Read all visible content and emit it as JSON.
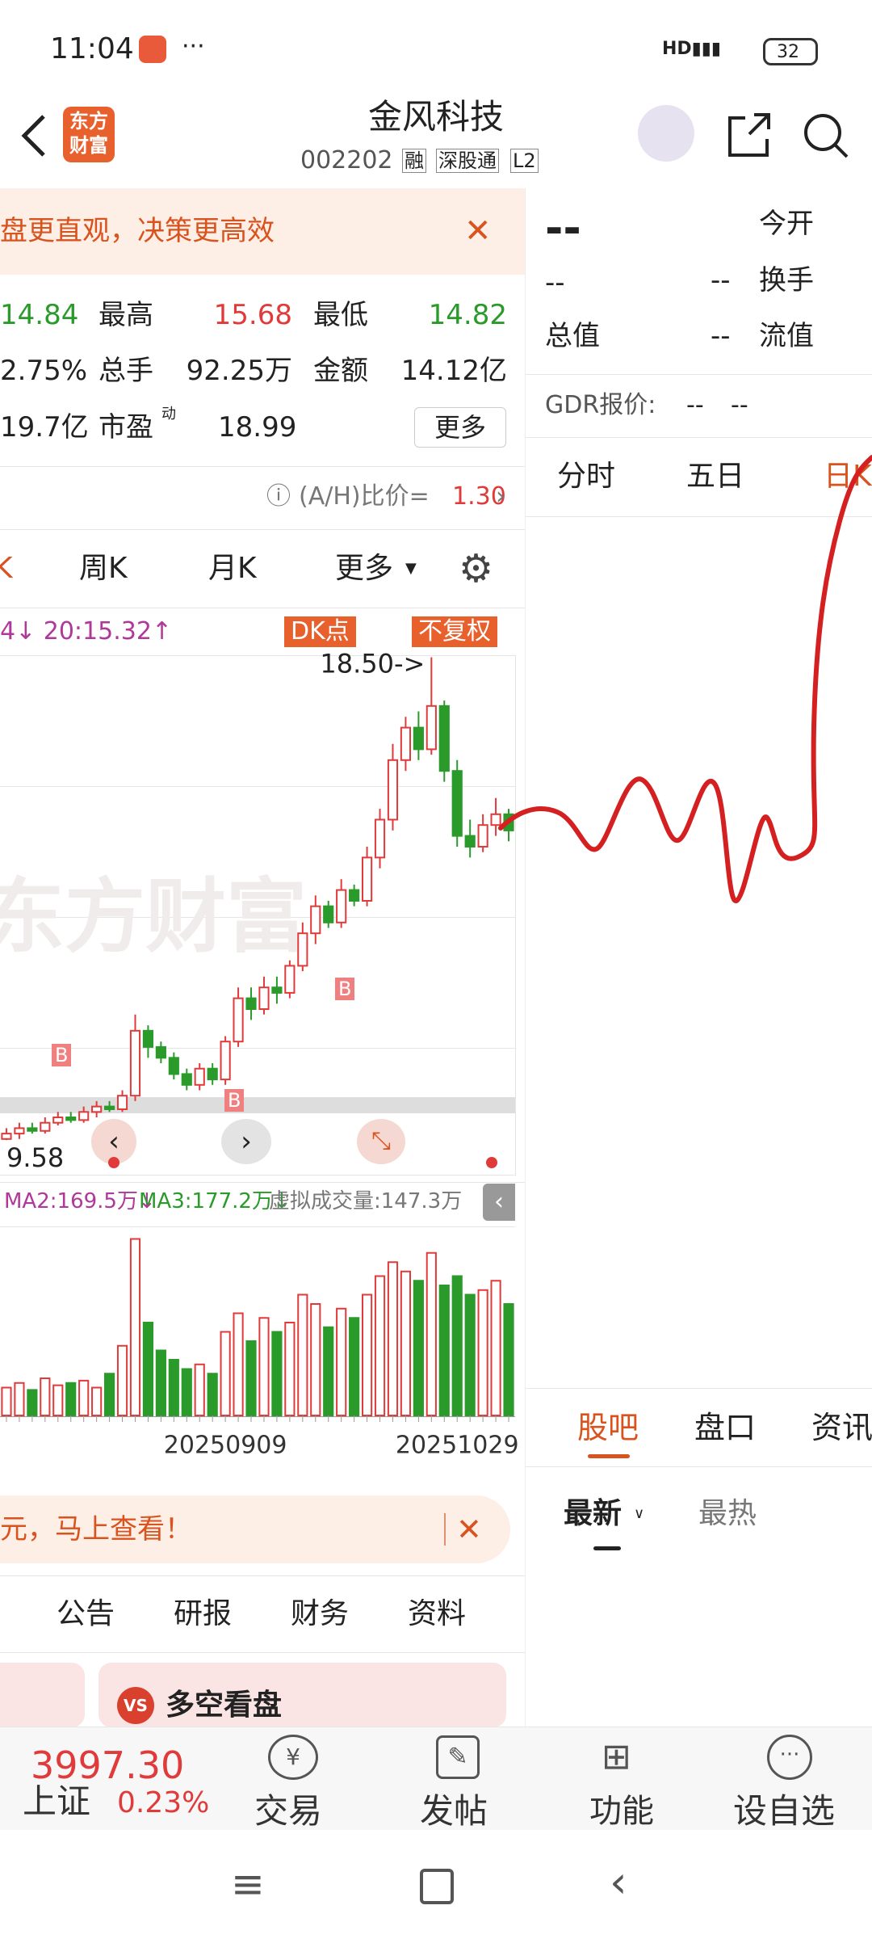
{
  "status_bar": {
    "time": "11:04",
    "battery": "32"
  },
  "header": {
    "logo": [
      "东方",
      "财富"
    ],
    "title": "金风科技",
    "code": "002202",
    "tags": [
      "融",
      "深股通",
      "L2"
    ]
  },
  "banner": {
    "text": "盘更直观，决策更高效"
  },
  "quote": {
    "rows": [
      [
        "14.84",
        "最高",
        "15.68",
        "最低",
        "14.82"
      ],
      [
        "2.75%",
        "总手",
        "92.25万",
        "金额",
        "14.12亿"
      ],
      [
        "19.7亿",
        "市盈",
        "动",
        "18.99"
      ]
    ],
    "more": "更多"
  },
  "ah_ratio": {
    "label": "(A/H)比价=",
    "value": "1.30"
  },
  "period_tabs": [
    "K",
    "周K",
    "月K",
    "更多"
  ],
  "chart_labels": {
    "ma_text": "4↓ 20:15.32↑",
    "dk": "DK点",
    "fq": "不复权",
    "watermark": "东方财富",
    "marker": "B"
  },
  "chart_data": {
    "type": "candlestick",
    "max_label": "18.50->",
    "min_label": "9.58",
    "ylim": [
      9,
      19
    ],
    "categories": [
      null,
      null,
      null,
      null,
      null,
      null,
      null,
      null,
      null,
      null,
      null,
      null,
      null,
      null,
      null,
      null,
      null,
      "20250909",
      null,
      null,
      null,
      null,
      null,
      null,
      null,
      null,
      null,
      null,
      null,
      null,
      null,
      null,
      null,
      null,
      null,
      "20251029",
      null,
      null,
      null,
      null
    ],
    "open": [
      9.6,
      9.7,
      9.8,
      9.75,
      9.9,
      10.0,
      9.95,
      10.1,
      10.2,
      10.15,
      10.4,
      11.6,
      11.3,
      11.1,
      10.8,
      10.6,
      10.9,
      10.7,
      11.4,
      12.2,
      12.0,
      12.4,
      12.3,
      12.8,
      13.4,
      13.9,
      13.6,
      14.2,
      14.0,
      14.8,
      15.5,
      16.6,
      17.2,
      16.8,
      17.6,
      16.4,
      15.2,
      15.0,
      15.4,
      15.6
    ],
    "high": [
      9.8,
      9.9,
      9.9,
      10.0,
      10.1,
      10.1,
      10.2,
      10.3,
      10.3,
      10.5,
      11.9,
      11.7,
      11.4,
      11.2,
      10.9,
      11.0,
      11.0,
      11.5,
      12.4,
      12.4,
      12.6,
      12.6,
      12.9,
      13.6,
      14.1,
      14.0,
      14.4,
      14.3,
      15.0,
      15.7,
      16.9,
      17.4,
      17.5,
      18.5,
      17.7,
      16.6,
      15.5,
      15.6,
      15.9,
      15.7
    ],
    "low": [
      9.58,
      9.6,
      9.7,
      9.7,
      9.85,
      9.9,
      9.9,
      10.0,
      10.1,
      10.1,
      10.3,
      11.1,
      11.0,
      10.7,
      10.5,
      10.5,
      10.6,
      10.6,
      11.3,
      11.8,
      11.9,
      12.1,
      12.2,
      12.7,
      13.2,
      13.5,
      13.5,
      13.9,
      13.9,
      14.6,
      15.3,
      16.4,
      16.6,
      16.7,
      16.2,
      15.0,
      14.8,
      14.9,
      15.2,
      15.1
    ],
    "close": [
      9.7,
      9.8,
      9.75,
      9.9,
      10.0,
      9.95,
      10.1,
      10.2,
      10.15,
      10.4,
      11.6,
      11.3,
      11.1,
      10.8,
      10.6,
      10.9,
      10.7,
      11.4,
      12.2,
      12.0,
      12.4,
      12.3,
      12.8,
      13.4,
      13.9,
      13.6,
      14.2,
      14.0,
      14.8,
      15.5,
      16.6,
      17.2,
      16.8,
      17.6,
      16.4,
      15.2,
      15.0,
      15.4,
      15.6,
      15.3
    ],
    "up_color": "#e03a3a",
    "down_color": "#2a9a2a",
    "volume": {
      "ylim": [
        0,
        400
      ],
      "values": [
        60,
        70,
        55,
        80,
        65,
        70,
        75,
        60,
        90,
        150,
        380,
        200,
        140,
        120,
        100,
        110,
        90,
        180,
        220,
        160,
        210,
        180,
        200,
        260,
        240,
        190,
        230,
        210,
        260,
        300,
        330,
        310,
        290,
        350,
        280,
        300,
        260,
        270,
        290,
        240
      ]
    }
  },
  "volume_legend": [
    "MA2:169.5万↓",
    "MA3:177.2万↓",
    "虚拟成交量:147.3万"
  ],
  "promo": {
    "text": "元，马上查看！"
  },
  "news_tabs": [
    "公告",
    "研报",
    "财务",
    "资料"
  ],
  "card": {
    "icon": "VS",
    "title": "多空看盘"
  },
  "bottom_bar": {
    "index_value": "3997.30",
    "index_name": "上证",
    "index_change": "0.23%",
    "items": [
      "交易",
      "发帖",
      "功能",
      "设自选"
    ]
  },
  "right_panel": {
    "price": "--",
    "open_label": "今开",
    "row2": [
      "--",
      "--",
      "换手"
    ],
    "row3": [
      "总值",
      "--",
      "流值"
    ],
    "gdr": [
      "GDR报价:",
      "--",
      "--"
    ],
    "tabs": [
      "分时",
      "五日",
      "日K"
    ],
    "community_tabs": [
      "股吧",
      "盘口",
      "资讯"
    ],
    "sort_tabs": [
      "最新",
      "最热"
    ]
  }
}
